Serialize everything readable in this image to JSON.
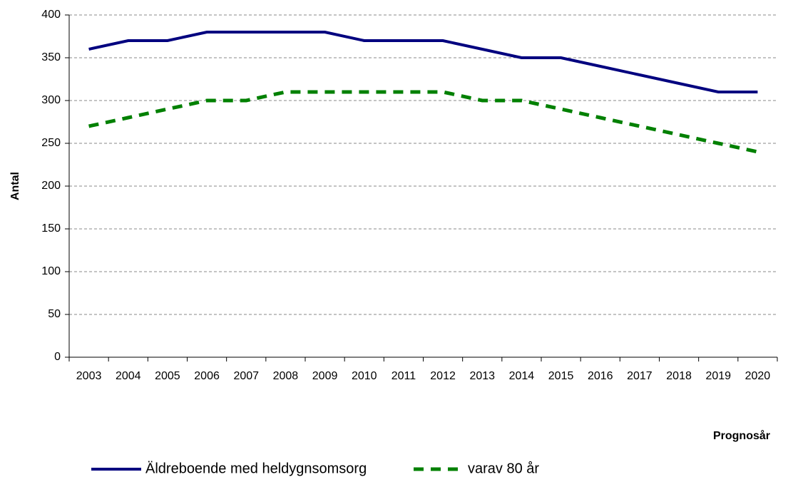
{
  "chart_data": {
    "type": "line",
    "categories": [
      "2003",
      "2004",
      "2005",
      "2006",
      "2007",
      "2008",
      "2009",
      "2010",
      "2011",
      "2012",
      "2013",
      "2014",
      "2015",
      "2016",
      "2017",
      "2018",
      "2019",
      "2020"
    ],
    "series": [
      {
        "name": "Äldreboende med heldygnsomsorg",
        "color": "#00007f",
        "dash": false,
        "values": [
          360,
          370,
          370,
          380,
          380,
          380,
          380,
          370,
          370,
          370,
          360,
          350,
          350,
          340,
          330,
          320,
          310,
          310
        ]
      },
      {
        "name": "varav 80 år",
        "color": "#008000",
        "dash": true,
        "values": [
          270,
          280,
          290,
          300,
          300,
          310,
          310,
          310,
          310,
          310,
          300,
          300,
          290,
          280,
          270,
          260,
          250,
          240
        ]
      }
    ],
    "ylim": [
      0,
      400
    ],
    "yticks": [
      0,
      50,
      100,
      150,
      200,
      250,
      300,
      350,
      400
    ],
    "ylabel": "Antal",
    "xlabel": "Prognosår",
    "grid": true,
    "legend": "bottom"
  }
}
